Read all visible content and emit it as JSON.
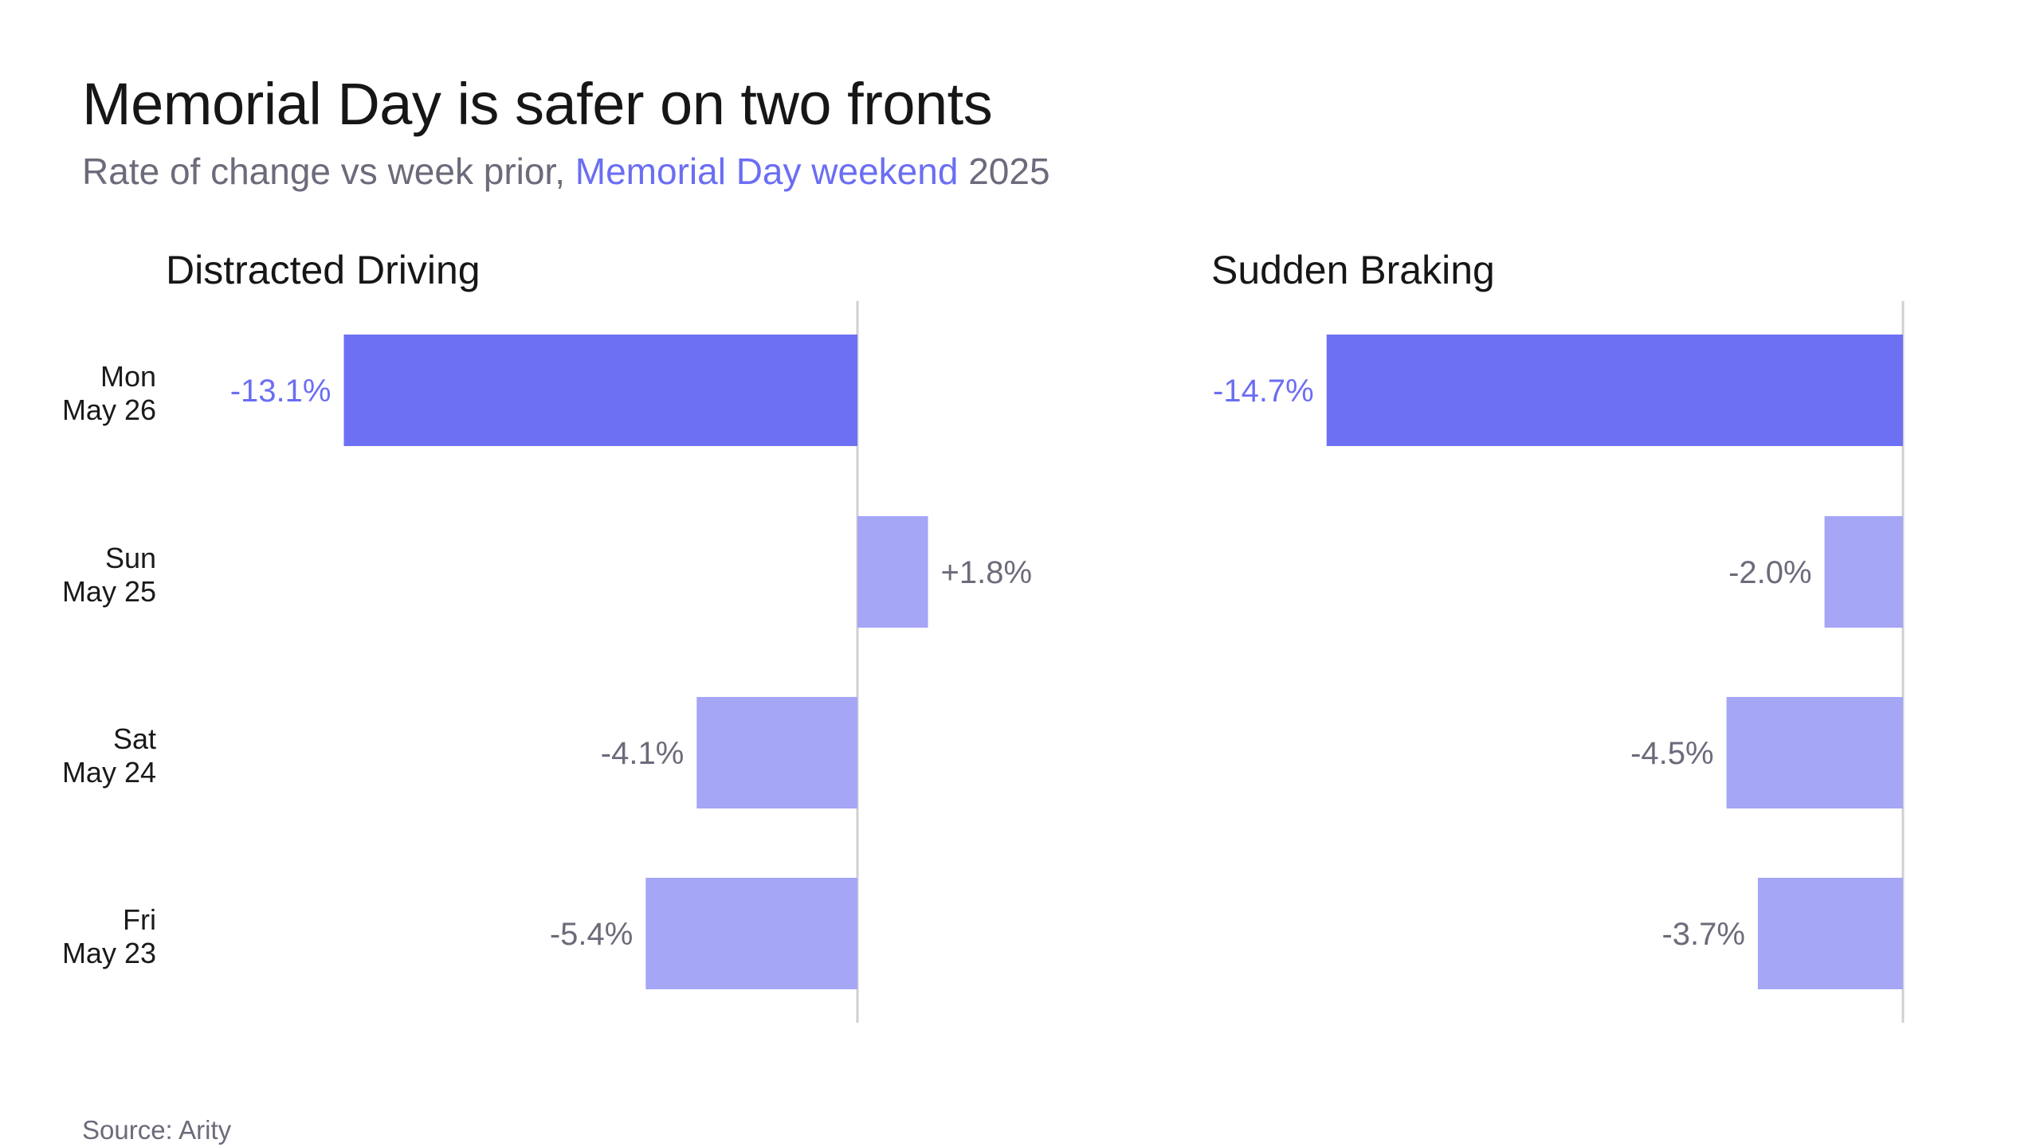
{
  "title": "Memorial Day is safer on two fronts",
  "subtitle": {
    "prefix": "Rate of change vs week prior, ",
    "highlight": "Memorial Day weekend",
    "suffix": " 2025"
  },
  "source": "Source: Arity",
  "colors": {
    "highlight_bar": "#6e70f4",
    "regular_bar": "#a5a6f6",
    "highlight_label": "#6b6ef2",
    "regular_label": "#6b6b7b",
    "axis": "#cfcfd4"
  },
  "categories": [
    {
      "day": "Mon",
      "date": "May 26"
    },
    {
      "day": "Sun",
      "date": "May 25"
    },
    {
      "day": "Sat",
      "date": "May 24"
    },
    {
      "day": "Fri",
      "date": "May 23"
    }
  ],
  "chart_data": [
    {
      "type": "bar",
      "orientation": "horizontal",
      "title": "Distracted Driving",
      "categories": [
        "Mon May 26",
        "Sun May 25",
        "Sat May 24",
        "Fri May 23"
      ],
      "values": [
        -13.1,
        1.8,
        -4.1,
        -5.4
      ],
      "labels": [
        "-13.1%",
        "+1.8%",
        "-4.1%",
        "-5.4%"
      ],
      "highlight_index": 0,
      "xlim": [
        -16,
        4
      ]
    },
    {
      "type": "bar",
      "orientation": "horizontal",
      "title": "Sudden Braking",
      "categories": [
        "Mon May 26",
        "Sun May 25",
        "Sat May 24",
        "Fri May 23"
      ],
      "values": [
        -14.7,
        -2.0,
        -4.5,
        -3.7
      ],
      "labels": [
        "-14.7%",
        "-2.0%",
        "-4.5%",
        "-3.7%"
      ],
      "highlight_index": 0,
      "xlim": [
        -16,
        0
      ]
    }
  ]
}
